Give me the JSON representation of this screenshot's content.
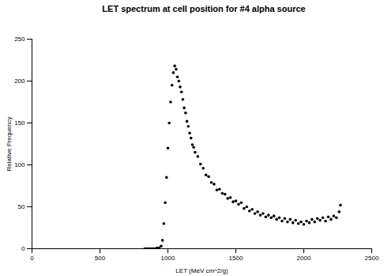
{
  "chart_data": {
    "type": "scatter",
    "title": "LET spectrum at cell position for #4 alpha source",
    "x_label": "LET (MeV cm^2/g)",
    "y_label": "Relative Frequency",
    "color": "#000000",
    "marker": "circle",
    "xlim": [
      0,
      2500
    ],
    "xticks": [
      0,
      500,
      1000,
      1500,
      2000,
      2500
    ],
    "ylim": [
      0,
      250
    ],
    "yticks": [
      0,
      50,
      100,
      150,
      200,
      250
    ],
    "grid": false,
    "x": [
      830,
      845,
      860,
      875,
      890,
      905,
      920,
      935,
      950,
      960,
      970,
      980,
      990,
      1000,
      1010,
      1020,
      1030,
      1040,
      1050,
      1060,
      1070,
      1080,
      1090,
      1100,
      1110,
      1120,
      1130,
      1140,
      1150,
      1160,
      1170,
      1180,
      1190,
      1200,
      1220,
      1240,
      1260,
      1280,
      1300,
      1320,
      1340,
      1360,
      1380,
      1400,
      1420,
      1440,
      1460,
      1480,
      1500,
      1520,
      1540,
      1560,
      1580,
      1600,
      1620,
      1640,
      1660,
      1680,
      1700,
      1720,
      1740,
      1760,
      1780,
      1800,
      1820,
      1840,
      1860,
      1880,
      1900,
      1920,
      1940,
      1960,
      1980,
      2000,
      2020,
      2040,
      2060,
      2080,
      2100,
      2120,
      2140,
      2160,
      2180,
      2200,
      2220,
      2240,
      2260,
      2270
    ],
    "values": [
      0,
      0,
      0,
      0,
      0,
      0,
      1,
      1,
      3,
      10,
      30,
      55,
      85,
      120,
      150,
      175,
      195,
      210,
      218,
      214,
      205,
      200,
      193,
      187,
      178,
      168,
      162,
      152,
      146,
      138,
      132,
      124,
      121,
      115,
      110,
      101,
      96,
      88,
      86,
      79,
      77,
      70,
      71,
      66,
      65,
      60,
      61,
      56,
      57,
      53,
      55,
      48,
      50,
      45,
      47,
      42,
      44,
      40,
      42,
      38,
      40,
      37,
      39,
      35,
      37,
      33,
      36,
      32,
      35,
      31,
      34,
      30,
      32,
      29,
      33,
      31,
      35,
      32,
      36,
      34,
      37,
      33,
      38,
      35,
      39,
      37,
      44,
      52
    ]
  }
}
